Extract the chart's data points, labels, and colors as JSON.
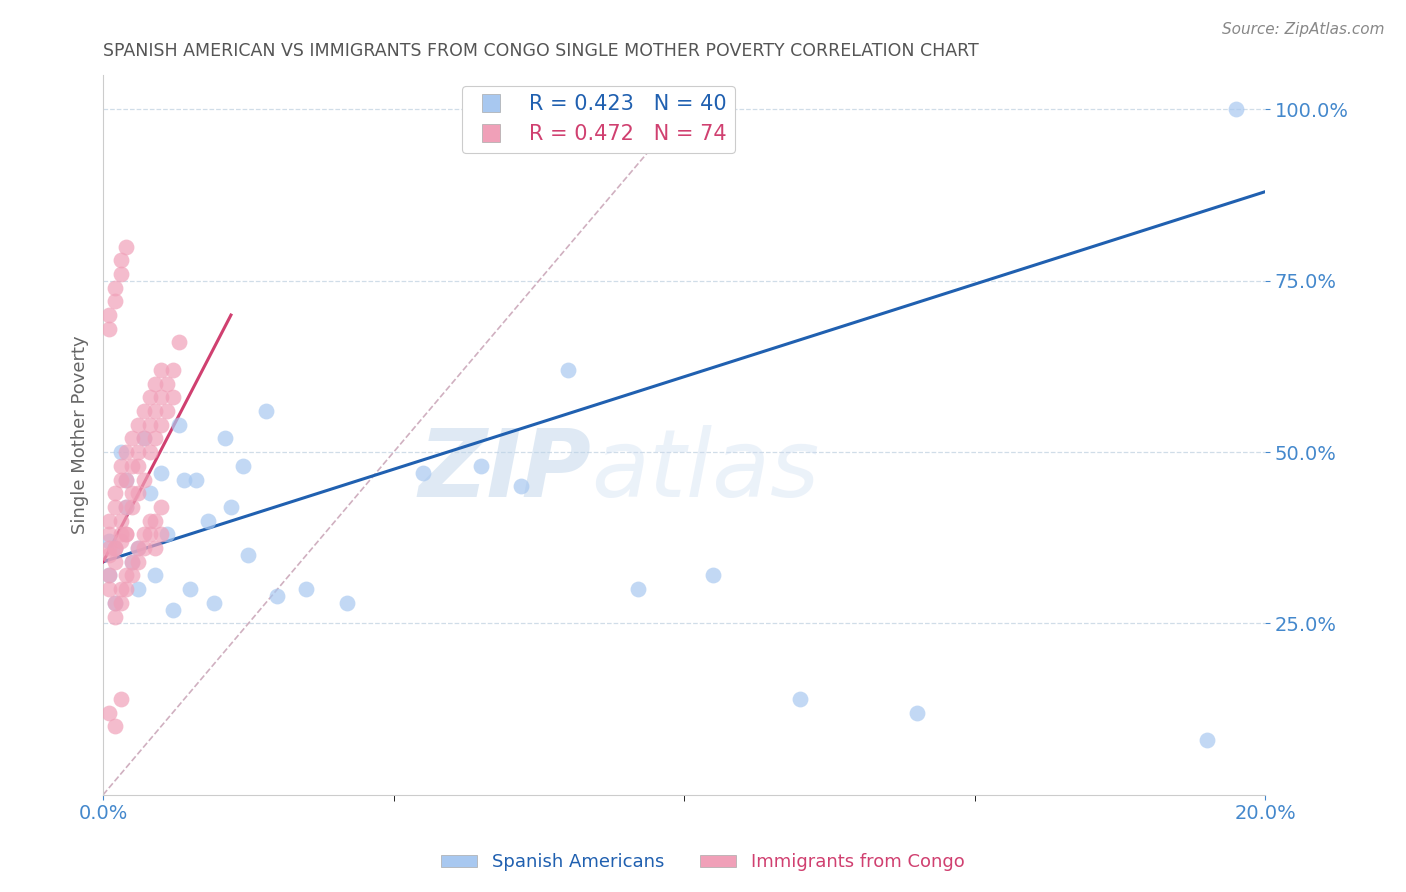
{
  "title": "SPANISH AMERICAN VS IMMIGRANTS FROM CONGO SINGLE MOTHER POVERTY CORRELATION CHART",
  "source": "Source: ZipAtlas.com",
  "ylabel": "Single Mother Poverty",
  "watermark": "ZIPatlas",
  "legend_entries": [
    {
      "label": "R = 0.423   N = 40",
      "color": "#a8c8f0"
    },
    {
      "label": "R = 0.472   N = 74",
      "color": "#f0a0b8"
    }
  ],
  "legend_labels_bottom": [
    "Spanish Americans",
    "Immigrants from Congo"
  ],
  "blue_scatter_color": "#a8c8f0",
  "pink_scatter_color": "#f0a0b8",
  "blue_line_color": "#2060b0",
  "pink_line_color": "#d04070",
  "diag_line_color": "#d0b0c0",
  "axis_label_color": "#4488cc",
  "grid_color": "#d0dde8",
  "title_color": "#555555",
  "xlim": [
    0.0,
    0.2
  ],
  "ylim": [
    0.0,
    1.05
  ],
  "yticks": [
    0.25,
    0.5,
    0.75,
    1.0
  ],
  "xticks_labels": [
    "0.0%",
    "20.0%"
  ],
  "xticks_positions": [
    0.0,
    0.2
  ],
  "blue_scatter_x": [
    0.001,
    0.003,
    0.004,
    0.007,
    0.01,
    0.013,
    0.016,
    0.021,
    0.024,
    0.028,
    0.001,
    0.002,
    0.005,
    0.006,
    0.009,
    0.012,
    0.015,
    0.019,
    0.025,
    0.03,
    0.002,
    0.004,
    0.006,
    0.008,
    0.011,
    0.014,
    0.018,
    0.022,
    0.035,
    0.042,
    0.055,
    0.065,
    0.072,
    0.08,
    0.092,
    0.105,
    0.12,
    0.14,
    0.19,
    0.195
  ],
  "blue_scatter_y": [
    0.37,
    0.5,
    0.46,
    0.52,
    0.47,
    0.54,
    0.46,
    0.52,
    0.48,
    0.56,
    0.32,
    0.28,
    0.34,
    0.3,
    0.32,
    0.27,
    0.3,
    0.28,
    0.35,
    0.29,
    0.36,
    0.42,
    0.36,
    0.44,
    0.38,
    0.46,
    0.4,
    0.42,
    0.3,
    0.28,
    0.47,
    0.48,
    0.45,
    0.62,
    0.3,
    0.32,
    0.14,
    0.12,
    0.08,
    1.0
  ],
  "pink_scatter_x": [
    0.001,
    0.001,
    0.001,
    0.002,
    0.002,
    0.002,
    0.002,
    0.003,
    0.003,
    0.003,
    0.003,
    0.004,
    0.004,
    0.004,
    0.004,
    0.005,
    0.005,
    0.005,
    0.005,
    0.006,
    0.006,
    0.006,
    0.006,
    0.007,
    0.007,
    0.007,
    0.008,
    0.008,
    0.008,
    0.009,
    0.009,
    0.009,
    0.01,
    0.01,
    0.01,
    0.011,
    0.011,
    0.012,
    0.012,
    0.013,
    0.001,
    0.001,
    0.002,
    0.002,
    0.003,
    0.003,
    0.004,
    0.004,
    0.005,
    0.005,
    0.006,
    0.006,
    0.007,
    0.007,
    0.008,
    0.008,
    0.009,
    0.009,
    0.01,
    0.01,
    0.001,
    0.002,
    0.003,
    0.004,
    0.001,
    0.002,
    0.003,
    0.001,
    0.002,
    0.003,
    0.001,
    0.002,
    0.003,
    0.004
  ],
  "pink_scatter_y": [
    0.36,
    0.38,
    0.4,
    0.34,
    0.36,
    0.42,
    0.44,
    0.38,
    0.4,
    0.46,
    0.48,
    0.38,
    0.42,
    0.46,
    0.5,
    0.42,
    0.44,
    0.48,
    0.52,
    0.44,
    0.48,
    0.5,
    0.54,
    0.46,
    0.52,
    0.56,
    0.5,
    0.54,
    0.58,
    0.52,
    0.56,
    0.6,
    0.54,
    0.58,
    0.62,
    0.56,
    0.6,
    0.58,
    0.62,
    0.66,
    0.32,
    0.3,
    0.28,
    0.26,
    0.3,
    0.28,
    0.32,
    0.3,
    0.34,
    0.32,
    0.36,
    0.34,
    0.38,
    0.36,
    0.4,
    0.38,
    0.36,
    0.4,
    0.38,
    0.42,
    0.7,
    0.72,
    0.76,
    0.8,
    0.68,
    0.74,
    0.78,
    0.12,
    0.1,
    0.14,
    0.35,
    0.36,
    0.37,
    0.38
  ],
  "blue_line_x": [
    0.0,
    0.2
  ],
  "blue_line_y": [
    0.34,
    0.88
  ],
  "pink_line_x": [
    0.0,
    0.022
  ],
  "pink_line_y": [
    0.34,
    0.7
  ],
  "diag_line_x": [
    0.0,
    0.1
  ],
  "diag_line_y": [
    0.0,
    1.0
  ]
}
